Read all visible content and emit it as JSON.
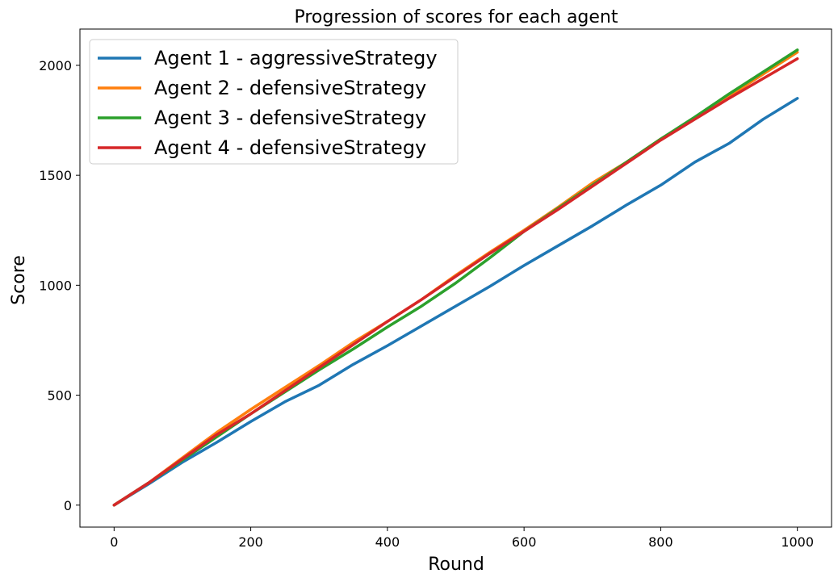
{
  "chart_data": {
    "type": "line",
    "title": "Progression of scores for each agent",
    "xlabel": "Round",
    "ylabel": "Score",
    "xlim": [
      -50,
      1050
    ],
    "ylim": [
      -100,
      2165
    ],
    "xticks": [
      0,
      200,
      400,
      600,
      800,
      1000
    ],
    "yticks": [
      0,
      500,
      1000,
      1500,
      2000
    ],
    "grid": false,
    "legend_position": "top-left",
    "series": [
      {
        "name": "Agent 1 - aggressiveStrategy",
        "color": "#1f77b4",
        "x": [
          0,
          50,
          100,
          150,
          200,
          250,
          300,
          350,
          400,
          450,
          500,
          550,
          600,
          650,
          700,
          750,
          800,
          850,
          900,
          950,
          1000
        ],
        "y": [
          0,
          95,
          195,
          285,
          380,
          470,
          545,
          640,
          725,
          815,
          905,
          995,
          1090,
          1180,
          1270,
          1365,
          1455,
          1560,
          1645,
          1755,
          1850
        ]
      },
      {
        "name": "Agent 2 - defensiveStrategy",
        "color": "#ff7f0e",
        "x": [
          0,
          50,
          100,
          150,
          200,
          250,
          300,
          350,
          400,
          450,
          500,
          550,
          600,
          650,
          700,
          750,
          800,
          850,
          900,
          950,
          1000
        ],
        "y": [
          0,
          100,
          215,
          330,
          435,
          535,
          635,
          740,
          835,
          935,
          1045,
          1150,
          1250,
          1355,
          1465,
          1560,
          1665,
          1760,
          1860,
          1960,
          2060
        ]
      },
      {
        "name": "Agent 3 - defensiveStrategy",
        "color": "#2ca02c",
        "x": [
          0,
          50,
          100,
          150,
          200,
          250,
          300,
          350,
          400,
          450,
          500,
          550,
          600,
          650,
          700,
          750,
          800,
          850,
          900,
          950,
          1000
        ],
        "y": [
          0,
          100,
          205,
          310,
          415,
          515,
          615,
          710,
          810,
          905,
          1010,
          1125,
          1245,
          1350,
          1455,
          1560,
          1665,
          1765,
          1870,
          1970,
          2070
        ]
      },
      {
        "name": "Agent 4 - defensiveStrategy",
        "color": "#d62728",
        "x": [
          0,
          50,
          100,
          150,
          200,
          250,
          300,
          350,
          400,
          450,
          500,
          550,
          600,
          650,
          700,
          750,
          800,
          850,
          900,
          950,
          1000
        ],
        "y": [
          0,
          100,
          210,
          320,
          415,
          520,
          625,
          730,
          835,
          935,
          1040,
          1145,
          1245,
          1345,
          1450,
          1555,
          1660,
          1755,
          1850,
          1940,
          2030
        ]
      }
    ]
  }
}
